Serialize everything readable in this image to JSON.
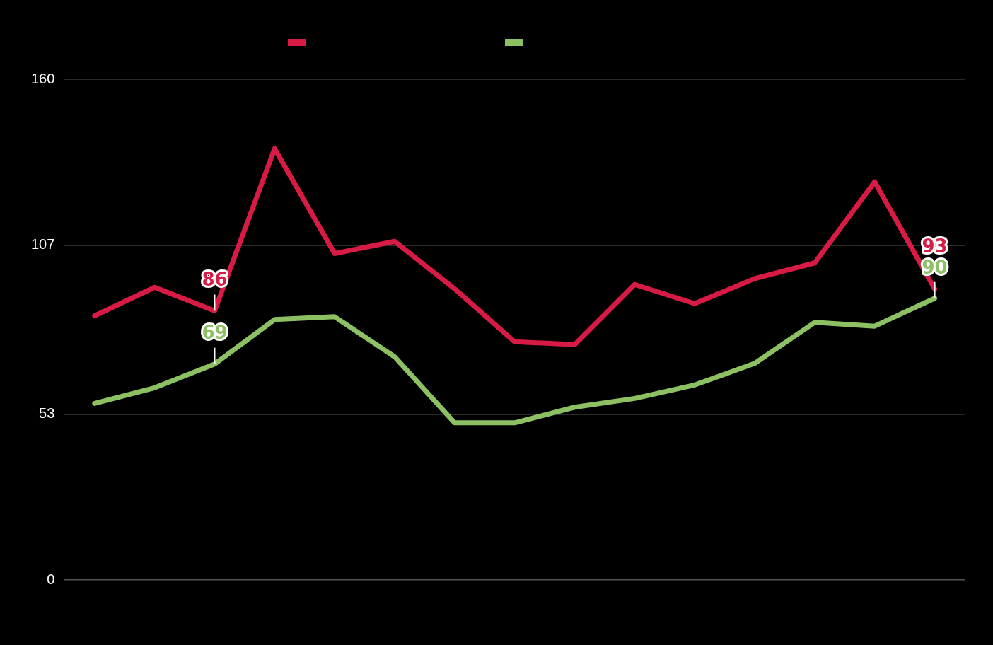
{
  "chart_data": {
    "type": "line",
    "categories": [
      null,
      null,
      null,
      null,
      null,
      null,
      null,
      null,
      null,
      null,
      null,
      null,
      null,
      null,
      null
    ],
    "series": [
      {
        "color": "#d81b45",
        "values": [
          84.4,
          93.5,
          86,
          137.8,
          104.3,
          108.2,
          93,
          76.1,
          75.2,
          94.4,
          88.3,
          96.3,
          101.3,
          127.2,
          93
        ],
        "value_labels": [
          null,
          null,
          "86",
          null,
          null,
          null,
          null,
          null,
          null,
          null,
          null,
          null,
          null,
          null,
          "93"
        ]
      },
      {
        "color": "#8cc063",
        "values": [
          56.4,
          61.4,
          69,
          83.2,
          84.1,
          71.3,
          50.2,
          50.2,
          55.2,
          58,
          62.3,
          69.2,
          82.3,
          81.1,
          90
        ],
        "value_labels": [
          null,
          null,
          "69",
          null,
          null,
          null,
          null,
          null,
          null,
          null,
          null,
          null,
          null,
          null,
          "90"
        ]
      }
    ],
    "ylim": [
      0,
      160
    ],
    "yticks": [
      0,
      53,
      107,
      160
    ],
    "grid": "y",
    "marker": "none",
    "line_style": "solid",
    "tick_labels": "y"
  }
}
